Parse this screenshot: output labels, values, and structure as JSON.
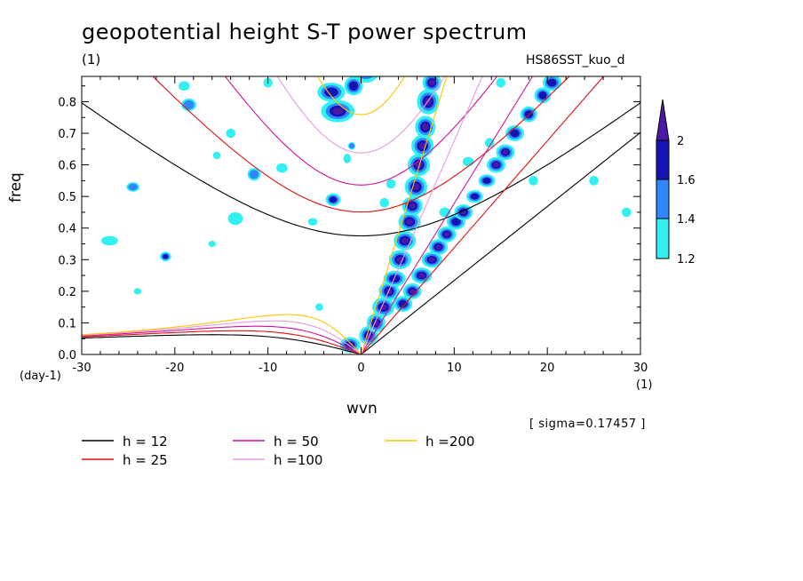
{
  "chart_data": {
    "type": "heatmap",
    "title": "geopotential height S-T power spectrum",
    "subtitle_left": "(1)",
    "subtitle_right": "HS86SST_kuo_d",
    "xlabel": "wvn",
    "ylabel": "freq",
    "x_unit": "(1)",
    "y_unit": "(day-1)",
    "annotation": "[ sigma=0.17457 ]",
    "xlim": [
      -30,
      30
    ],
    "ylim": [
      0,
      0.88
    ],
    "x_ticks": [
      -30,
      -20,
      -10,
      0,
      10,
      20,
      30
    ],
    "x_tick_labels": [
      "-30",
      "-20",
      "-10",
      "0",
      "10",
      "20",
      "30"
    ],
    "y_ticks": [
      0,
      0.1,
      0.2,
      0.3,
      0.4,
      0.5,
      0.6,
      0.7,
      0.8
    ],
    "y_tick_labels": [
      "0.0",
      "0.1",
      "0.2",
      "0.3",
      "0.4",
      "0.5",
      "0.6",
      "0.7",
      "0.8"
    ],
    "colorbar": {
      "levels": [
        1.2,
        1.4,
        1.6,
        2
      ],
      "labels": [
        "1.2",
        "1.4",
        "1.6",
        "2"
      ],
      "colors": [
        "#33f0f0",
        "#2f86ff",
        "#1414b4",
        "#4b1aa5"
      ]
    },
    "dispersion_curves": [
      {
        "name": "h = 12",
        "h": 12,
        "color": "#000000"
      },
      {
        "name": "h = 25",
        "h": 25,
        "color": "#e01010"
      },
      {
        "name": "h = 50",
        "h": 50,
        "color": "#d4109a"
      },
      {
        "name": "h =100",
        "h": 100,
        "color": "#e59be0"
      },
      {
        "name": "h =200",
        "h": 200,
        "color": "#ffc400"
      }
    ],
    "spectral_blobs": [
      [
        -1.2,
        0.03,
        1.1,
        0.025,
        3
      ],
      [
        0.8,
        0.06,
        1.0,
        0.03,
        3
      ],
      [
        1.6,
        0.1,
        1.0,
        0.03,
        3
      ],
      [
        2.4,
        0.15,
        1.2,
        0.03,
        3
      ],
      [
        3.0,
        0.2,
        1.1,
        0.03,
        3
      ],
      [
        3.6,
        0.24,
        1.2,
        0.025,
        2
      ],
      [
        4.2,
        0.3,
        1.2,
        0.03,
        3
      ],
      [
        4.7,
        0.36,
        1.2,
        0.03,
        3
      ],
      [
        5.2,
        0.42,
        1.2,
        0.03,
        3
      ],
      [
        5.5,
        0.47,
        1.1,
        0.03,
        3
      ],
      [
        5.9,
        0.53,
        1.2,
        0.035,
        3
      ],
      [
        6.2,
        0.6,
        1.2,
        0.035,
        3
      ],
      [
        6.6,
        0.66,
        1.2,
        0.035,
        3
      ],
      [
        6.9,
        0.72,
        1.1,
        0.035,
        3
      ],
      [
        7.2,
        0.8,
        1.2,
        0.04,
        3
      ],
      [
        7.6,
        0.86,
        1.0,
        0.03,
        3
      ],
      [
        -2.5,
        0.77,
        1.8,
        0.035,
        3
      ],
      [
        -3.2,
        0.83,
        1.5,
        0.03,
        2
      ],
      [
        -0.8,
        0.85,
        1.0,
        0.03,
        2
      ],
      [
        -3.0,
        0.49,
        0.8,
        0.02,
        2
      ],
      [
        4.5,
        0.16,
        1.0,
        0.025,
        2
      ],
      [
        5.5,
        0.2,
        1.0,
        0.025,
        3
      ],
      [
        6.5,
        0.25,
        1.1,
        0.025,
        3
      ],
      [
        7.6,
        0.3,
        1.1,
        0.025,
        3
      ],
      [
        8.3,
        0.34,
        1.0,
        0.025,
        3
      ],
      [
        9.2,
        0.38,
        1.0,
        0.025,
        3
      ],
      [
        10.2,
        0.42,
        1.0,
        0.025,
        2
      ],
      [
        11.0,
        0.45,
        1.0,
        0.025,
        3
      ],
      [
        12.2,
        0.5,
        0.9,
        0.02,
        2
      ],
      [
        13.5,
        0.55,
        0.9,
        0.02,
        2
      ],
      [
        14.5,
        0.6,
        1.0,
        0.025,
        3
      ],
      [
        15.5,
        0.64,
        1.0,
        0.025,
        3
      ],
      [
        16.5,
        0.7,
        1.0,
        0.025,
        2
      ],
      [
        18.0,
        0.76,
        0.9,
        0.025,
        2
      ],
      [
        19.5,
        0.82,
        0.9,
        0.025,
        2
      ],
      [
        20.5,
        0.86,
        1.0,
        0.025,
        2
      ],
      [
        -21.0,
        0.31,
        0.6,
        0.015,
        2
      ],
      [
        -11.5,
        0.57,
        0.7,
        0.02,
        1
      ],
      [
        -24.5,
        0.53,
        0.7,
        0.015,
        1
      ],
      [
        -18.5,
        0.79,
        0.8,
        0.02,
        1
      ],
      [
        -14,
        0.7,
        0.5,
        0.015,
        0
      ],
      [
        -5.2,
        0.42,
        0.5,
        0.012,
        0
      ],
      [
        -13.5,
        0.43,
        0.8,
        0.02,
        0
      ],
      [
        -27,
        0.36,
        0.9,
        0.015,
        0
      ],
      [
        -19,
        0.85,
        0.6,
        0.015,
        0
      ],
      [
        -10,
        0.86,
        0.5,
        0.015,
        0
      ],
      [
        0.5,
        0.9,
        1.5,
        0.04,
        2
      ],
      [
        -8.5,
        0.59,
        0.6,
        0.015,
        0
      ],
      [
        -4.5,
        0.15,
        0.4,
        0.012,
        0
      ],
      [
        -24,
        0.2,
        0.4,
        0.01,
        0
      ],
      [
        28.5,
        0.45,
        0.5,
        0.015,
        0
      ],
      [
        25,
        0.55,
        0.5,
        0.015,
        0
      ],
      [
        -15.5,
        0.63,
        0.4,
        0.012,
        0
      ],
      [
        -16,
        0.35,
        0.4,
        0.01,
        0
      ],
      [
        -1.5,
        0.62,
        0.4,
        0.015,
        0
      ],
      [
        -1.0,
        0.66,
        0.4,
        0.012,
        1
      ],
      [
        9.0,
        0.45,
        0.6,
        0.015,
        0
      ],
      [
        11.5,
        0.61,
        0.6,
        0.015,
        0
      ],
      [
        13.8,
        0.67,
        0.5,
        0.015,
        0
      ],
      [
        15.0,
        0.86,
        0.5,
        0.015,
        0
      ],
      [
        2.5,
        0.48,
        0.5,
        0.015,
        0
      ],
      [
        3.2,
        0.54,
        0.5,
        0.015,
        0
      ],
      [
        18.5,
        0.55,
        0.5,
        0.015,
        0
      ]
    ],
    "legend_placement": "below-plot"
  }
}
